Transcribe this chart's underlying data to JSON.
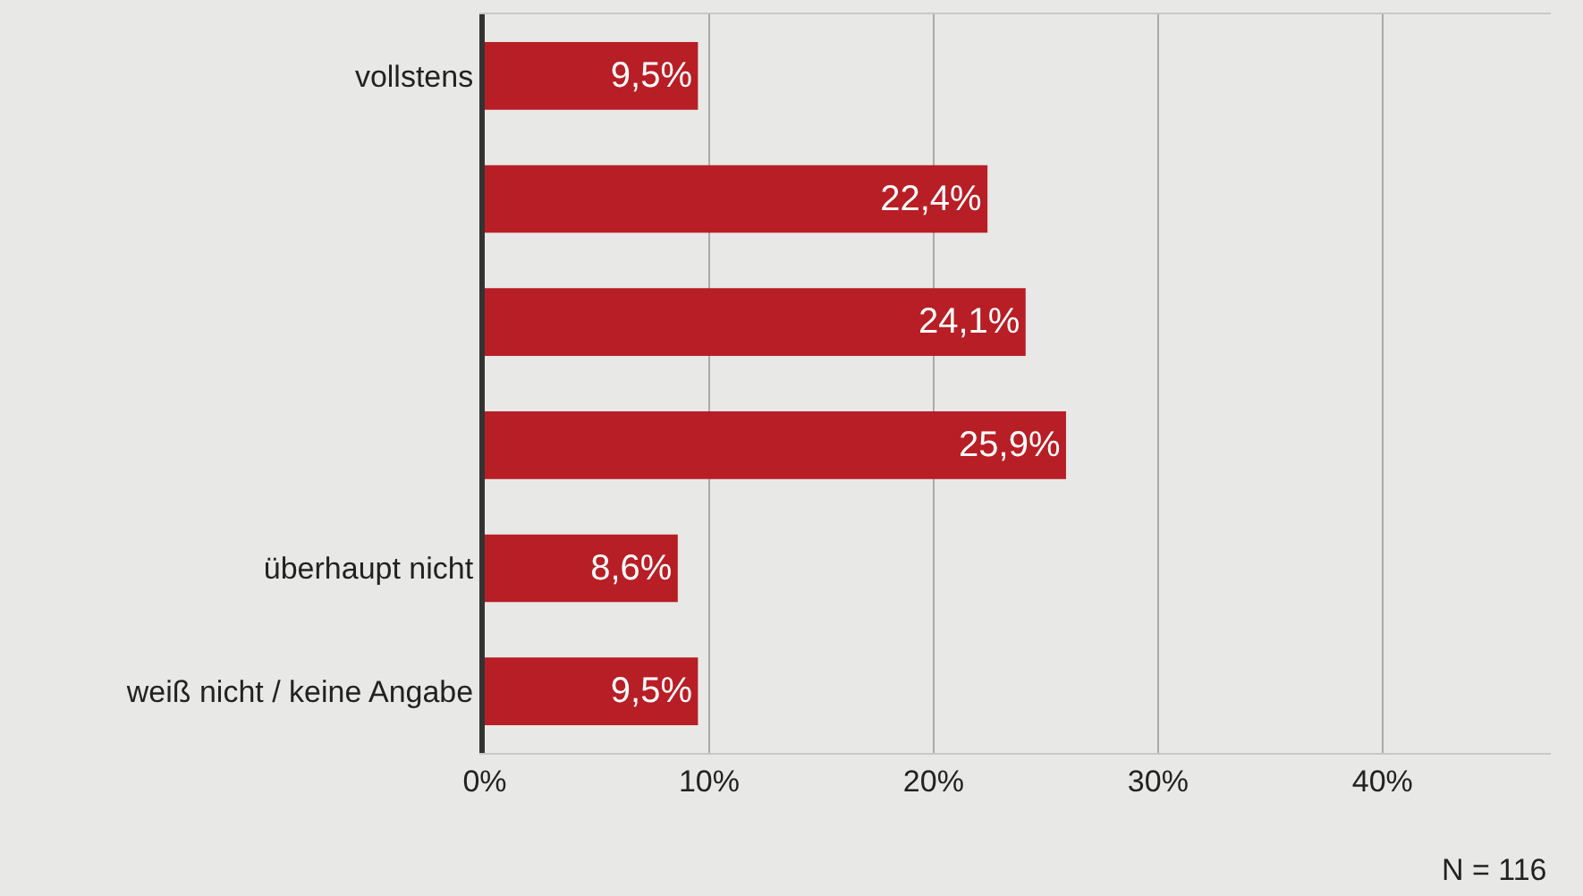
{
  "chart_data": {
    "type": "bar",
    "orientation": "horizontal",
    "categories": [
      "vollstens",
      null,
      null,
      null,
      "überhaupt nicht",
      "weiß nicht / keine Angabe"
    ],
    "values": [
      9.5,
      22.4,
      24.1,
      25.9,
      8.6,
      9.5
    ],
    "value_labels": [
      "9,5%",
      "22,4%",
      "24,1%",
      "25,9%",
      "8,6%",
      "9,5%"
    ],
    "color": "#b81e25",
    "xlim": [
      0,
      47.5
    ],
    "xticks": [
      {
        "value": 0,
        "label": "0%"
      },
      {
        "value": 10,
        "label": "10%"
      },
      {
        "value": 20,
        "label": "20%"
      },
      {
        "value": 30,
        "label": "30%"
      },
      {
        "value": 40,
        "label": "40%"
      }
    ],
    "grid": "x",
    "legend": false,
    "annotations": [
      "N = 116"
    ]
  }
}
